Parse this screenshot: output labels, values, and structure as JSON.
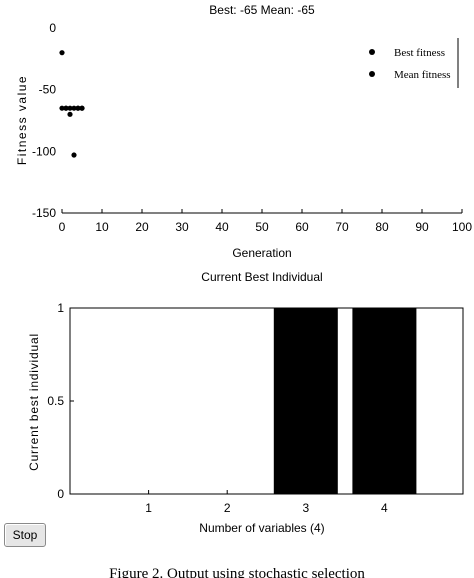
{
  "chart_data": [
    {
      "type": "scatter",
      "title": "Best: -65 Mean: -65",
      "xlabel": "Generation",
      "ylabel": "Fitness value",
      "xlim": [
        0,
        100
      ],
      "ylim": [
        -150,
        0
      ],
      "xticks": [
        "0",
        "10",
        "20",
        "30",
        "40",
        "50",
        "60",
        "70",
        "80",
        "90",
        "100"
      ],
      "yticks": [
        "0",
        "-50",
        "-100",
        "-150"
      ],
      "legend_position": "top-right",
      "series": [
        {
          "name": "Best fitness",
          "x": [
            0,
            1,
            2,
            3,
            4,
            5
          ],
          "y": [
            -65,
            -65,
            -65,
            -65,
            -65,
            -65
          ]
        },
        {
          "name": "Mean fitness",
          "x": [
            0,
            1,
            2,
            3,
            4,
            5
          ],
          "y": [
            -20,
            -65,
            -70,
            -103,
            -65,
            -65
          ]
        }
      ]
    },
    {
      "type": "bar",
      "title": "Current Best Individual",
      "xlabel": "Number of variables (4)",
      "ylabel": "Current best individual",
      "categories": [
        "1",
        "2",
        "3",
        "4"
      ],
      "values": [
        0,
        0,
        1,
        1
      ],
      "ylim": [
        0,
        1
      ],
      "yticks": [
        "0",
        "0.5",
        "1"
      ]
    }
  ],
  "controls": {
    "stop_label": "Stop"
  },
  "caption": "Figure 2.   Output using stochastic selection"
}
